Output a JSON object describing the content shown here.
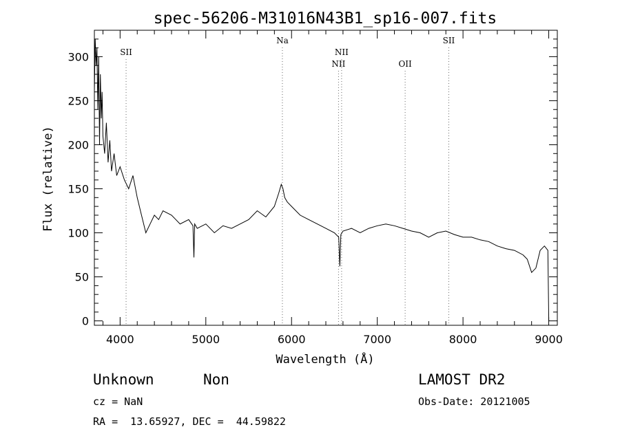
{
  "chart_data": {
    "type": "line",
    "title": "spec-56206-M31016N43B1_sp16-007.fits",
    "xlabel": "Wavelength (Å)",
    "ylabel": "Flux (relative)",
    "xlim": [
      3700,
      9100
    ],
    "ylim": [
      -5,
      330
    ],
    "x_ticks": [
      4000,
      5000,
      6000,
      7000,
      8000,
      9000
    ],
    "y_ticks": [
      0,
      50,
      100,
      150,
      200,
      250,
      300
    ],
    "grid": false,
    "series": [
      {
        "x": [
          3700,
          3710,
          3720,
          3730,
          3740,
          3750,
          3760,
          3770,
          3780,
          3790,
          3800,
          3820,
          3840,
          3860,
          3880,
          3900,
          3930,
          3960,
          4000,
          4050,
          4100,
          4150,
          4200,
          4250,
          4300,
          4350,
          4400,
          4450,
          4500,
          4600,
          4700,
          4800,
          4850,
          4861,
          4870,
          4900,
          5000,
          5100,
          5200,
          5300,
          5400,
          5500,
          5600,
          5700,
          5800,
          5850,
          5880,
          5900,
          5920,
          5950,
          6000,
          6100,
          6200,
          6300,
          6400,
          6500,
          6550,
          6563,
          6575,
          6600,
          6700,
          6800,
          6900,
          7000,
          7100,
          7200,
          7300,
          7400,
          7500,
          7600,
          7700,
          7800,
          7900,
          8000,
          8100,
          8200,
          8300,
          8400,
          8500,
          8600,
          8700,
          8750,
          8800,
          8850,
          8900,
          8950,
          8990,
          9000
        ],
        "y": [
          260,
          320,
          290,
          310,
          240,
          300,
          200,
          280,
          230,
          260,
          210,
          190,
          225,
          180,
          205,
          170,
          190,
          165,
          175,
          160,
          150,
          165,
          140,
          120,
          100,
          110,
          120,
          115,
          125,
          120,
          110,
          115,
          108,
          72,
          110,
          105,
          110,
          100,
          108,
          105,
          110,
          115,
          125,
          118,
          130,
          145,
          155,
          150,
          140,
          135,
          130,
          120,
          115,
          110,
          105,
          100,
          95,
          62,
          98,
          102,
          105,
          100,
          105,
          108,
          110,
          108,
          105,
          102,
          100,
          95,
          100,
          102,
          98,
          95,
          95,
          92,
          90,
          85,
          82,
          80,
          75,
          70,
          55,
          60,
          80,
          85,
          80,
          0
        ]
      }
    ],
    "line_markers": [
      {
        "label": "SII",
        "x": 4070,
        "row": 0
      },
      {
        "label": "Na",
        "x": 5893,
        "row": -1
      },
      {
        "label": "NII",
        "x": 6548,
        "row": 1
      },
      {
        "label": "NII",
        "x": 6584,
        "row": 0
      },
      {
        "label": "OII",
        "x": 7325,
        "row": 1
      },
      {
        "label": "SII",
        "x": 7834,
        "row": -1
      }
    ]
  },
  "info": {
    "class": "Unknown",
    "subclass": "Non",
    "survey": "LAMOST DR2",
    "cz": "cz = NaN",
    "obs_date": "Obs-Date: 20121005",
    "coords": "RA =  13.65927, DEC =  44.59822"
  }
}
